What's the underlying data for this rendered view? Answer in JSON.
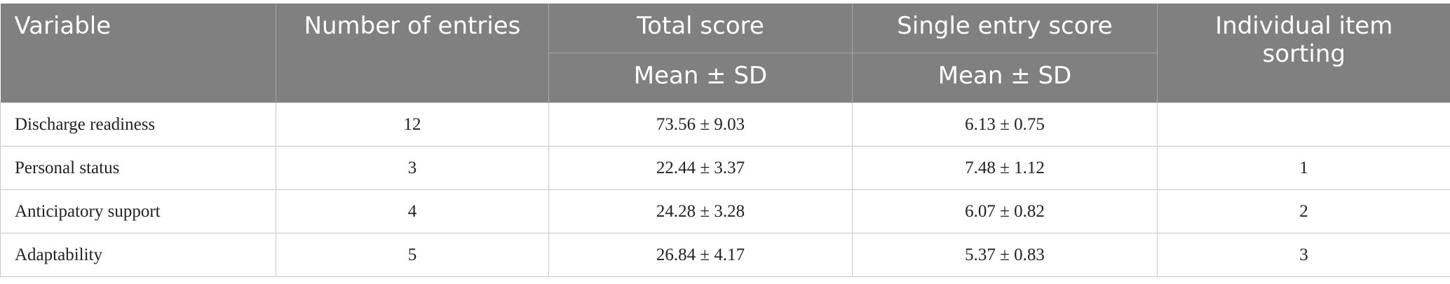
{
  "table": {
    "header": {
      "variable": "Variable",
      "entries": "Number of entries",
      "total": "Total score",
      "single": "Single entry score",
      "sorting": "Individual item sorting",
      "total_sub": "Mean ± SD",
      "single_sub": "Mean ± SD"
    },
    "rows": [
      {
        "variable": "Discharge readiness",
        "entries": 12,
        "total": "73.56 ± 9.03",
        "single": "6.13 ± 0.75"
      },
      {
        "variable": "Personal status",
        "entries": 3,
        "total": "22.44 ± 3.37",
        "single": "7.48 ± 1.12",
        "sorting": 1
      },
      {
        "variable": "Anticipatory support",
        "entries": 4,
        "total": "24.28 ± 3.28",
        "single": "6.07 ± 0.82",
        "sorting": 2
      },
      {
        "variable": "Adaptability",
        "entries": 5,
        "total": "26.84 ± 4.17",
        "single": "5.37 ± 0.83",
        "sorting": 3
      }
    ]
  }
}
